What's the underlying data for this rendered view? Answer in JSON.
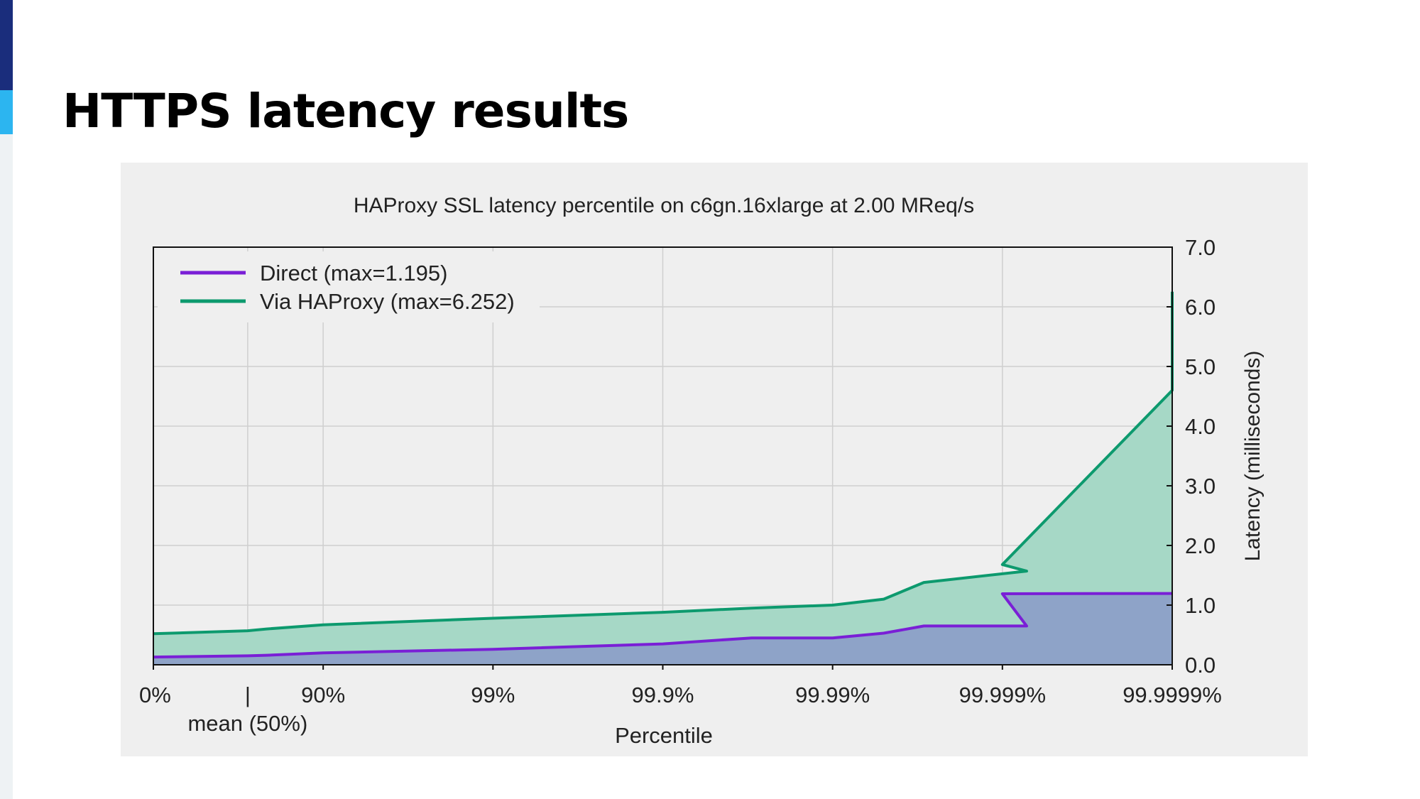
{
  "slide": {
    "title": "HTTPS latency results"
  },
  "colors": {
    "direct": "#7a1fd6",
    "via_haproxy": "#0d9a6e",
    "direct_fill": "#8ea3c8",
    "via_haproxy_fill": "#a6d8c6"
  },
  "chart_data": {
    "type": "area",
    "title": "HAProxy SSL latency percentile on c6gn.16xlarge at 2.00 MReq/s",
    "xlabel": "Percentile",
    "ylabel": "Latency (milliseconds)",
    "x_scale": "percentile-nines",
    "x_ticks": [
      "0%",
      "90%",
      "99%",
      "99.9%",
      "99.99%",
      "99.999%",
      "99.9999%"
    ],
    "x_marker": {
      "label_top": "|",
      "label_bottom": "mean (50%)",
      "x": 50
    },
    "ylim": [
      0,
      7.0
    ],
    "y_ticks": [
      "0.0",
      "1.0",
      "2.0",
      "3.0",
      "4.0",
      "5.0",
      "6.0",
      "7.0"
    ],
    "y_axis_side": "right",
    "grid": true,
    "legend": "top-left",
    "x": [
      0,
      50,
      60,
      90,
      99,
      99.9,
      99.97,
      99.99,
      99.995,
      99.9971,
      99.99928,
      99.999,
      99.99995,
      99.9999
    ],
    "series": [
      {
        "name": "Direct (max=1.195)",
        "color_key": "direct",
        "values": [
          0.13,
          0.15,
          0.16,
          0.2,
          0.26,
          0.35,
          0.45,
          0.45,
          0.53,
          0.65,
          0.65,
          1.19,
          1.195,
          1.195
        ]
      },
      {
        "name": "Via HAProxy (max=6.252)",
        "color_key": "via_haproxy",
        "values": [
          0.52,
          0.57,
          0.6,
          0.67,
          0.78,
          0.88,
          0.95,
          1.0,
          1.1,
          1.38,
          1.57,
          1.68,
          4.6,
          6.252
        ]
      }
    ]
  }
}
